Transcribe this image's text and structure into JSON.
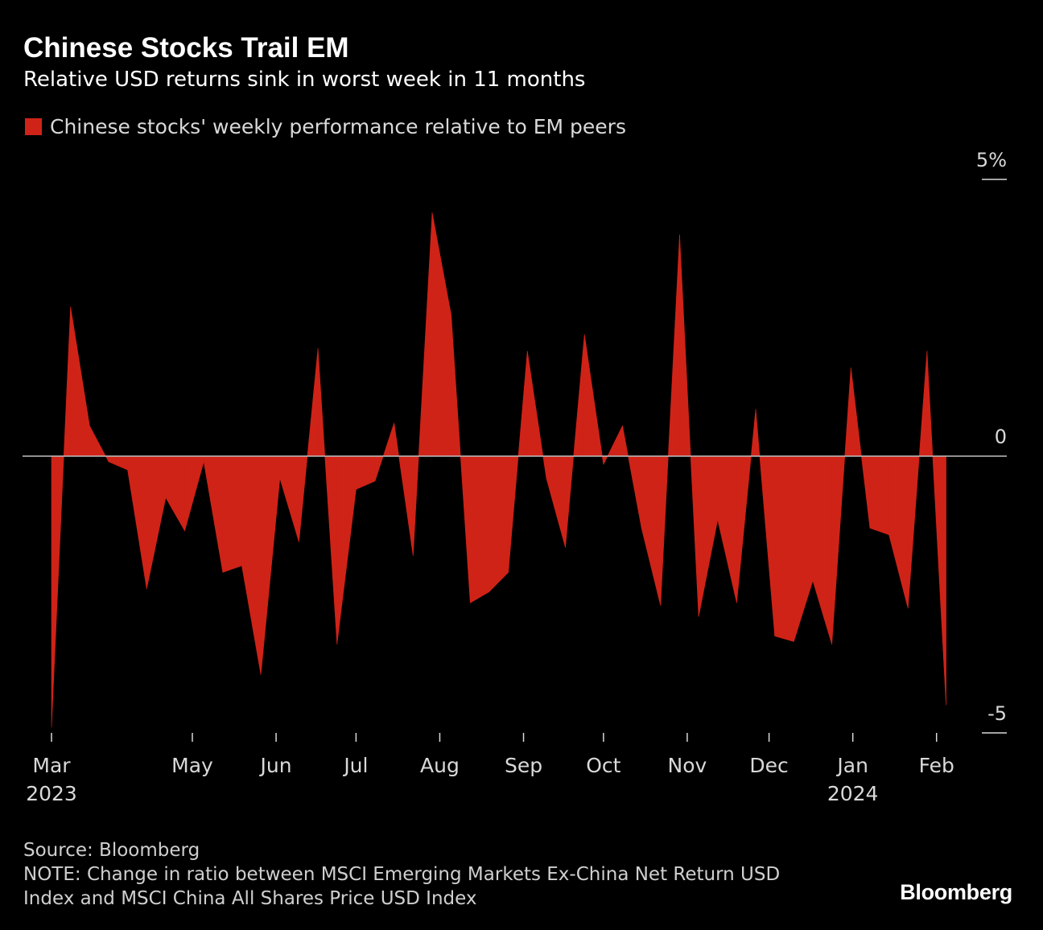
{
  "chart_data": {
    "type": "area",
    "title": "Chinese Stocks Trail EM",
    "subtitle": "Relative USD returns sink in worst week in 11 months",
    "legend": [
      {
        "name": "Chinese stocks' weekly performance relative to EM peers",
        "color": "#cf2318"
      }
    ],
    "unit": "%",
    "ylim": [
      -5,
      5
    ],
    "y_ticks": [
      {
        "value": 5,
        "label": "5%"
      },
      {
        "value": 0,
        "label": "0"
      },
      {
        "value": -5,
        "label": "-5"
      }
    ],
    "x_ticks": [
      {
        "label": "Mar",
        "year": "2023",
        "week": 0
      },
      {
        "label": "May",
        "year": "",
        "week": 7.4
      },
      {
        "label": "Jun",
        "year": "",
        "week": 11.8
      },
      {
        "label": "Jul",
        "year": "",
        "week": 16.0
      },
      {
        "label": "Aug",
        "year": "",
        "week": 20.4
      },
      {
        "label": "Sep",
        "year": "",
        "week": 24.8
      },
      {
        "label": "Oct",
        "year": "",
        "week": 29.0
      },
      {
        "label": "Nov",
        "year": "",
        "week": 33.4
      },
      {
        "label": "Dec",
        "year": "",
        "week": 37.7
      },
      {
        "label": "Jan",
        "year": "2024",
        "week": 42.1
      },
      {
        "label": "Feb",
        "year": "",
        "week": 46.5
      }
    ],
    "series": [
      {
        "name": "Chinese stocks' weekly performance relative to EM peers",
        "values": [
          -4.9,
          2.7,
          0.55,
          -0.1,
          -0.25,
          -2.4,
          -0.75,
          -1.35,
          -0.1,
          -2.1,
          -1.98,
          -3.95,
          -0.4,
          -1.55,
          1.95,
          -3.4,
          -0.6,
          -0.45,
          0.6,
          -1.8,
          4.4,
          2.55,
          -2.65,
          -2.45,
          -2.1,
          1.9,
          -0.4,
          -1.65,
          2.2,
          -0.15,
          0.55,
          -1.3,
          -2.7,
          4.0,
          -2.9,
          -1.15,
          -2.65,
          0.85,
          -3.25,
          -3.35,
          -2.25,
          -3.4,
          1.6,
          -1.3,
          -1.42,
          -2.75,
          1.9,
          -4.5
        ]
      }
    ],
    "source": "Source: Bloomberg",
    "note_lines": [
      "NOTE: Change in ratio between MSCI Emerging Markets Ex-China Net Return USD",
      "Index and MSCI China All Shares Price USD Index"
    ],
    "brand": "Bloomberg"
  }
}
